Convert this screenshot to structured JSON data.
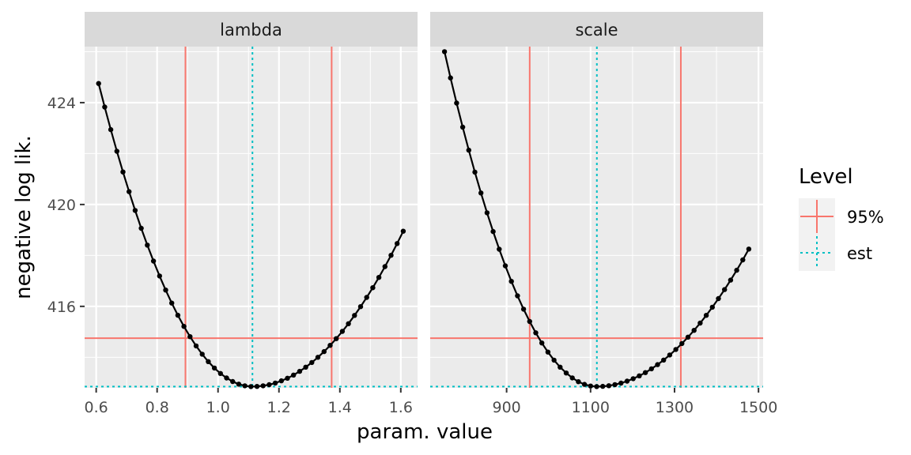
{
  "chart_data": {
    "type": "line",
    "xlabel": "param. value",
    "ylabel": "negative log lik.",
    "legend": {
      "title": "Level",
      "position": "right",
      "entries": [
        {
          "label": "95%",
          "color": "#F8766D",
          "linetype": "solid"
        },
        {
          "label": "est",
          "color": "#00BFC4",
          "linetype": "dotted"
        }
      ]
    },
    "shared_y": {
      "range": [
        412.8,
        426.2
      ],
      "ticks": [
        416,
        420,
        424
      ],
      "tick_labels": [
        "416",
        "420",
        "424"
      ]
    },
    "reference_lines": {
      "ci_95_y": 414.75,
      "est_y": 412.85
    },
    "panels": [
      {
        "strip": "lambda",
        "xlim": [
          0.562,
          1.655
        ],
        "x_ticks": [
          0.6,
          0.8,
          1.0,
          1.2,
          1.4,
          1.6
        ],
        "x_tick_labels": [
          "0.6",
          "0.8",
          "1.0",
          "1.2",
          "1.4",
          "1.6"
        ],
        "ci_95_x": [
          0.893,
          1.373
        ],
        "est_x": 1.113,
        "series": {
          "x0": 0.608,
          "dx": 0.02,
          "n": 51,
          "y_min": 412.85,
          "x_min": 1.113,
          "left_end": 424.75,
          "right_end": 418.95
        }
      },
      {
        "strip": "scale",
        "xlim": [
          718,
          1511
        ],
        "x_ticks": [
          900,
          1100,
          1300,
          1500
        ],
        "x_tick_labels": [
          "900",
          "1100",
          "1300",
          "1500"
        ],
        "ci_95_x": [
          955,
          1315
        ],
        "est_x": 1115,
        "series": {
          "x0": 752,
          "dx": 14.5,
          "n": 51,
          "y_min": 412.85,
          "x_min": 1115,
          "left_end": 426.0,
          "right_end": 418.25
        }
      }
    ]
  }
}
